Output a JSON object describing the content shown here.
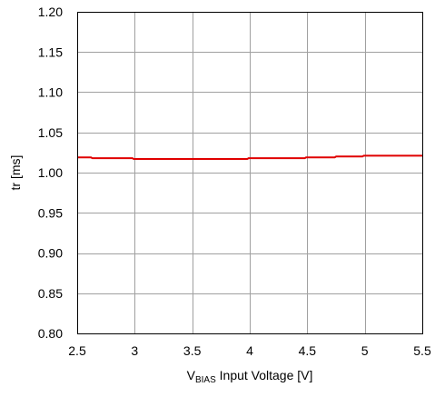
{
  "chart_data": {
    "type": "line",
    "xlabel": {
      "prefix": "V",
      "subscript": "BIAS",
      "suffix": " Input Voltage [V]"
    },
    "ylabel": "tr [ms]",
    "xlim": [
      2.5,
      5.5
    ],
    "ylim": [
      0.8,
      1.2
    ],
    "x_ticks": [
      2.5,
      3.0,
      3.5,
      4.0,
      4.5,
      5.0,
      5.5
    ],
    "x_tick_labels": [
      "2.5",
      "3",
      "3.5",
      "4",
      "4.5",
      "5",
      "5.5"
    ],
    "y_ticks": [
      0.8,
      0.85,
      0.9,
      0.95,
      1.0,
      1.05,
      1.1,
      1.15,
      1.2
    ],
    "y_tick_labels": [
      "0.80",
      "0.85",
      "0.90",
      "0.95",
      "1.00",
      "1.05",
      "1.10",
      "1.15",
      "1.20"
    ],
    "grid": true,
    "series": [
      {
        "color": "#e00000",
        "x": [
          2.5,
          2.62,
          2.63,
          2.98,
          2.99,
          3.98,
          3.99,
          4.48,
          4.49,
          4.74,
          4.75,
          4.98,
          4.99,
          5.5
        ],
        "y": [
          1.019,
          1.019,
          1.018,
          1.018,
          1.017,
          1.017,
          1.018,
          1.018,
          1.019,
          1.019,
          1.02,
          1.02,
          1.021,
          1.021
        ]
      }
    ]
  }
}
